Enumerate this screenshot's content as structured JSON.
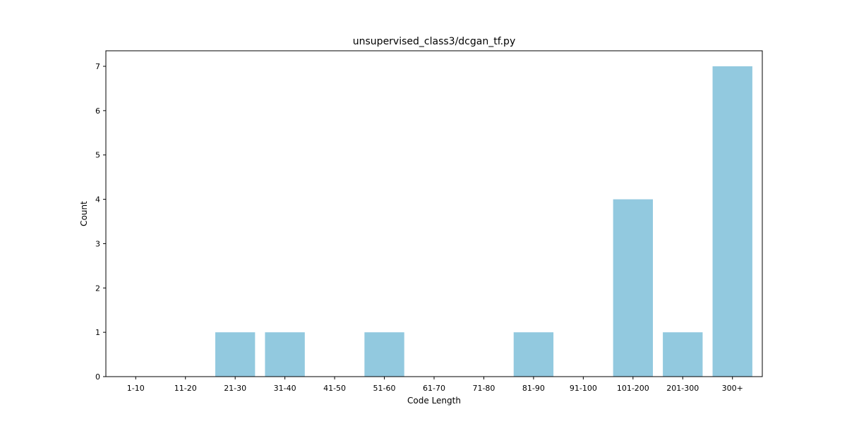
{
  "chart_data": {
    "type": "bar",
    "title": "unsupervised_class3/dcgan_tf.py",
    "xlabel": "Code Length",
    "ylabel": "Count",
    "categories": [
      "1-10",
      "11-20",
      "21-30",
      "31-40",
      "41-50",
      "51-60",
      "61-70",
      "71-80",
      "81-90",
      "91-100",
      "101-200",
      "201-300",
      "300+"
    ],
    "values": [
      0,
      0,
      1,
      1,
      0,
      1,
      0,
      0,
      1,
      0,
      4,
      1,
      7
    ],
    "ylim": [
      0,
      7.35
    ],
    "yticks": [
      0,
      1,
      2,
      3,
      4,
      5,
      6,
      7
    ],
    "bar_color": "#92c9df",
    "grid": false,
    "legend": "none"
  }
}
